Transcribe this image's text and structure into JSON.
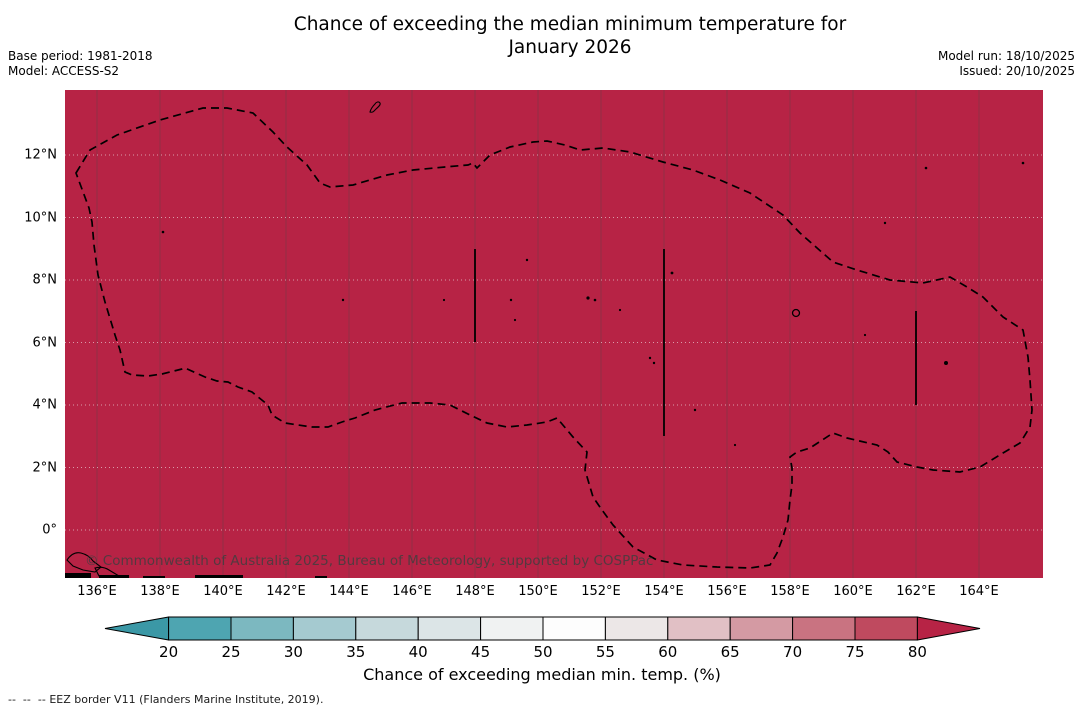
{
  "header": {
    "title_line1": "Chance of exceeding the median minimum temperature for",
    "title_line2": "January 2026",
    "base_period": "Base period: 1981-2018",
    "model": "Model: ACCESS-S2",
    "model_run": "Model run: 18/10/2025",
    "issued": "Issued: 20/10/2025"
  },
  "map": {
    "fill_color": "#b72345",
    "watermark": "© Commonwealth of Australia 2025, Bureau of Meteorology, supported by COSPPac",
    "x_ticks": [
      "136°E",
      "138°E",
      "140°E",
      "142°E",
      "144°E",
      "146°E",
      "148°E",
      "150°E",
      "152°E",
      "154°E",
      "156°E",
      "158°E",
      "160°E",
      "162°E",
      "164°E"
    ],
    "y_ticks": [
      "12°N",
      "10°N",
      "8°N",
      "6°N",
      "4°N",
      "2°N",
      "0°"
    ]
  },
  "colorbar": {
    "label": "Chance of exceeding median min. temp. (%)",
    "ticks": [
      "20",
      "25",
      "30",
      "35",
      "40",
      "45",
      "50",
      "55",
      "60",
      "65",
      "70",
      "75",
      "80"
    ],
    "segment_colors": [
      "#4ea5b1",
      "#7cb8c0",
      "#a5cad0",
      "#c6d9dc",
      "#dce5e7",
      "#f0f2f2",
      "#fdfdfd",
      "#ece7e7",
      "#e1c0c5",
      "#d49aa3",
      "#c97381",
      "#bf4a5f"
    ],
    "under_arrow_color": "#3b98a6",
    "over_arrow_color": "#b72345"
  },
  "footer": {
    "legend_symbol": "--  --  --",
    "legend_text": "EEZ border V11 (Flanders Marine Institute, 2019)."
  },
  "chart_data": {
    "type": "heatmap",
    "title": "Chance of exceeding the median minimum temperature for January 2026",
    "base_period": "1981-2018",
    "model": "ACCESS-S2",
    "model_run": "18/10/2025",
    "issued": "20/10/2025",
    "x_ticks_deg_east": [
      136,
      138,
      140,
      142,
      144,
      146,
      148,
      150,
      152,
      154,
      156,
      158,
      160,
      162,
      164
    ],
    "y_ticks_deg_north": [
      12,
      10,
      8,
      6,
      4,
      2,
      0
    ],
    "x_range_deg_east": [
      134.9,
      166.1
    ],
    "y_range_deg_north": [
      -1.6,
      14.1
    ],
    "value_field": "Chance of exceeding median min. temp. (%)",
    "field_summary": "Entire mapped EEZ region is shaded in the > 80% class (solid crimson); dashed line marks EEZ border with internal boundary meridian segments at 148E (6-9N), 154E (3-9N) and 162E (4-7N)",
    "colorbar": {
      "ticks": [
        20,
        25,
        30,
        35,
        40,
        45,
        50,
        55,
        60,
        65,
        70,
        75,
        80
      ],
      "extend": "both",
      "label": "Chance of exceeding median min. temp. (%)"
    },
    "grid": true,
    "legend_position": "bottom colorbar"
  }
}
